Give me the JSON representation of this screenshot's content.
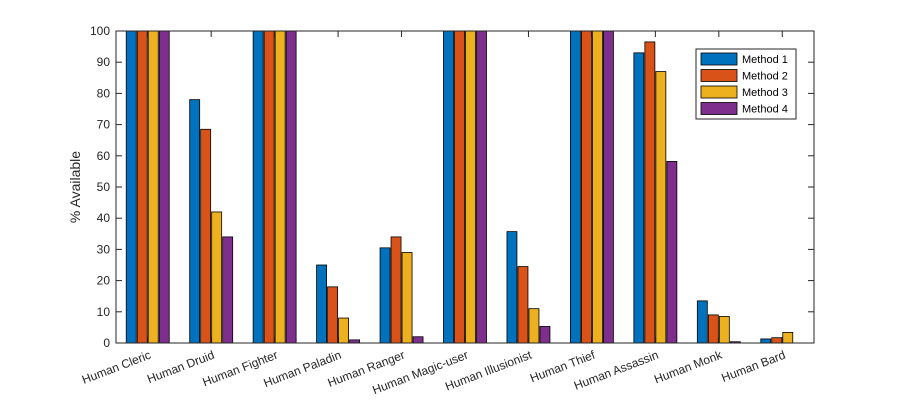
{
  "chart_data": {
    "type": "bar",
    "title": "",
    "xlabel": "",
    "ylabel": "% Available",
    "ylim": [
      0,
      100
    ],
    "yticks": [
      0,
      10,
      20,
      30,
      40,
      50,
      60,
      70,
      80,
      90,
      100
    ],
    "grid": false,
    "legend_position": "top-right",
    "categories": [
      "Human Cleric",
      "Human Druid",
      "Human Fighter",
      "Human Paladin",
      "Human Ranger",
      "Human Magic-user",
      "Human Illusionist",
      "Human Thief",
      "Human Assassin",
      "Human Monk",
      "Human Bard"
    ],
    "series": [
      {
        "name": "Method 1",
        "color": "#0072BD",
        "values": [
          100,
          78,
          100,
          25,
          30.5,
          100,
          35.7,
          100,
          93,
          13.5,
          1.3
        ]
      },
      {
        "name": "Method 2",
        "color": "#D95319",
        "values": [
          100,
          68.5,
          100,
          18,
          34,
          100,
          24.5,
          100,
          96.5,
          9,
          1.7
        ]
      },
      {
        "name": "Method 3",
        "color": "#EDB120",
        "values": [
          100,
          42,
          100,
          8,
          29,
          100,
          11,
          100,
          87,
          8.5,
          3.4
        ]
      },
      {
        "name": "Method 4",
        "color": "#7E2F8E",
        "values": [
          100,
          34,
          100,
          1,
          2,
          100,
          5.3,
          100,
          58.2,
          0.4,
          0
        ]
      }
    ]
  }
}
